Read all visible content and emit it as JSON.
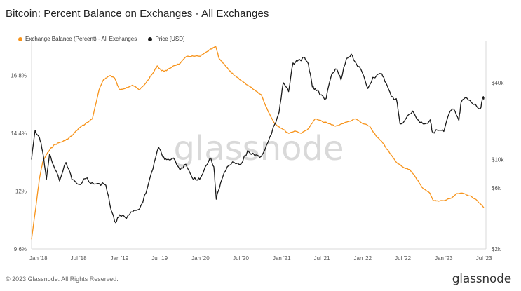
{
  "title": "Bitcoin: Percent Balance on Exchanges - All Exchanges",
  "legend": {
    "exchange_label": "Exchange Balance (Percent) - All Exchanges",
    "price_label": "Price [USD]"
  },
  "footer": {
    "copyright": "© 2023 Glassnode. All Rights Reserved.",
    "brand": "glassnode"
  },
  "watermark": "glassnode",
  "colors": {
    "exchange": "#f7931a",
    "price": "#1a1a1a",
    "grid": "#efefef"
  },
  "chart_data": {
    "type": "line",
    "title": "Bitcoin: Percent Balance on Exchanges - All Exchanges",
    "xlim": [
      "2017-12-01",
      "2023-07-10"
    ],
    "x_ticks": [
      "Jan '18",
      "Jul '18",
      "Jan '19",
      "Jul '19",
      "Jan '20",
      "Jul '20",
      "Jan '21",
      "Jul '21",
      "Jan '22",
      "Jul '22",
      "Jan '23",
      "Jul '23"
    ],
    "y_left": {
      "ticks": [
        "9.6%",
        "12%",
        "14.4%",
        "16.8%"
      ],
      "ylim": [
        9.6,
        18.1
      ]
    },
    "y_right": {
      "scale": "log",
      "ticks": [
        "$2k",
        "$6k",
        "$10k",
        "$40k"
      ],
      "tick_values": [
        2000,
        6000,
        10000,
        40000
      ],
      "ylim": [
        2000,
        80000
      ]
    },
    "grid": false,
    "legend_position": "top-left",
    "series": [
      {
        "name": "Exchange Balance (Percent) - All Exchanges",
        "axis": "left",
        "x": [
          "2017-12-01",
          "2017-12-20",
          "2018-01-05",
          "2018-01-20",
          "2018-02-05",
          "2018-02-20",
          "2018-03-10",
          "2018-04-01",
          "2018-05-01",
          "2018-06-01",
          "2018-07-01",
          "2018-08-01",
          "2018-09-01",
          "2018-10-01",
          "2018-10-20",
          "2018-11-01",
          "2018-11-20",
          "2018-12-10",
          "2019-01-01",
          "2019-02-01",
          "2019-03-01",
          "2019-04-01",
          "2019-05-01",
          "2019-06-01",
          "2019-06-20",
          "2019-07-10",
          "2019-08-01",
          "2019-09-01",
          "2019-10-01",
          "2019-11-01",
          "2019-12-01",
          "2020-01-01",
          "2020-02-01",
          "2020-02-20",
          "2020-03-10",
          "2020-03-25",
          "2020-04-15",
          "2020-05-10",
          "2020-06-01",
          "2020-07-01",
          "2020-08-01",
          "2020-09-01",
          "2020-10-01",
          "2020-11-01",
          "2020-12-01",
          "2021-01-01",
          "2021-02-01",
          "2021-03-01",
          "2021-04-01",
          "2021-05-01",
          "2021-06-01",
          "2021-07-01",
          "2021-08-01",
          "2021-09-01",
          "2021-10-01",
          "2021-11-01",
          "2021-12-01",
          "2022-01-01",
          "2022-02-01",
          "2022-03-01",
          "2022-04-01",
          "2022-05-01",
          "2022-06-01",
          "2022-07-01",
          "2022-08-01",
          "2022-09-01",
          "2022-10-01",
          "2022-11-01",
          "2022-11-15",
          "2022-12-01",
          "2023-01-01",
          "2023-02-01",
          "2023-03-01",
          "2023-04-01",
          "2023-05-01",
          "2023-06-01",
          "2023-07-01"
        ],
        "y": [
          10.0,
          11.3,
          12.5,
          13.2,
          13.5,
          13.7,
          13.9,
          14.0,
          14.1,
          14.3,
          14.6,
          14.8,
          15.0,
          16.2,
          16.6,
          16.7,
          16.8,
          16.7,
          16.2,
          16.3,
          16.4,
          16.2,
          16.5,
          16.9,
          17.2,
          17.0,
          17.0,
          17.2,
          17.3,
          17.6,
          17.6,
          17.6,
          17.8,
          17.9,
          18.0,
          17.5,
          17.3,
          17.0,
          16.8,
          16.6,
          16.4,
          16.2,
          16.0,
          15.3,
          14.8,
          14.6,
          14.4,
          14.5,
          14.4,
          14.6,
          15.0,
          14.9,
          14.8,
          14.7,
          14.8,
          14.9,
          15.0,
          14.8,
          14.7,
          14.3,
          14.0,
          13.6,
          13.2,
          13.0,
          12.9,
          12.5,
          12.1,
          11.9,
          11.6,
          11.6,
          11.6,
          11.7,
          11.9,
          11.9,
          11.8,
          11.6,
          11.3
        ]
      },
      {
        "name": "Price [USD]",
        "axis": "right",
        "x": [
          "2017-12-01",
          "2017-12-17",
          "2018-01-05",
          "2018-01-20",
          "2018-02-06",
          "2018-02-20",
          "2018-03-10",
          "2018-04-06",
          "2018-05-05",
          "2018-06-01",
          "2018-07-01",
          "2018-08-01",
          "2018-09-01",
          "2018-10-01",
          "2018-11-01",
          "2018-11-25",
          "2018-12-15",
          "2019-01-01",
          "2019-02-01",
          "2019-03-01",
          "2019-04-01",
          "2019-05-01",
          "2019-06-01",
          "2019-06-26",
          "2019-07-15",
          "2019-08-01",
          "2019-09-01",
          "2019-10-01",
          "2019-10-27",
          "2019-11-25",
          "2019-12-17",
          "2020-01-01",
          "2020-02-13",
          "2020-03-01",
          "2020-03-12",
          "2020-04-01",
          "2020-05-01",
          "2020-06-01",
          "2020-07-01",
          "2020-08-01",
          "2020-09-01",
          "2020-10-01",
          "2020-11-01",
          "2020-12-01",
          "2020-12-20",
          "2021-01-08",
          "2021-02-01",
          "2021-02-21",
          "2021-03-13",
          "2021-04-14",
          "2021-05-01",
          "2021-05-19",
          "2021-06-01",
          "2021-06-22",
          "2021-07-20",
          "2021-08-15",
          "2021-09-05",
          "2021-09-25",
          "2021-10-20",
          "2021-11-10",
          "2021-12-01",
          "2022-01-01",
          "2022-01-24",
          "2022-02-15",
          "2022-03-28",
          "2022-04-15",
          "2022-05-10",
          "2022-06-01",
          "2022-06-18",
          "2022-07-15",
          "2022-08-14",
          "2022-09-15",
          "2022-10-15",
          "2022-11-01",
          "2022-11-10",
          "2022-12-15",
          "2023-01-01",
          "2023-01-25",
          "2023-02-15",
          "2023-03-10",
          "2023-03-20",
          "2023-04-14",
          "2023-05-15",
          "2023-06-15",
          "2023-06-25",
          "2023-07-01"
        ],
        "y": [
          10000,
          17000,
          15000,
          11500,
          7000,
          11000,
          9000,
          6800,
          9500,
          7000,
          6400,
          7100,
          6600,
          6500,
          6300,
          4000,
          3200,
          3700,
          3450,
          3900,
          4100,
          5500,
          8500,
          12500,
          10500,
          10000,
          10300,
          8300,
          9200,
          7200,
          6900,
          7200,
          10300,
          8800,
          4900,
          6600,
          8800,
          9500,
          9200,
          11800,
          10800,
          10600,
          13800,
          19000,
          23500,
          40000,
          34000,
          57000,
          59000,
          63000,
          56000,
          37000,
          36000,
          32000,
          30000,
          47000,
          51000,
          42000,
          62000,
          67000,
          57000,
          47000,
          36000,
          44000,
          47000,
          40000,
          31000,
          30000,
          19000,
          21000,
          24000,
          19500,
          19300,
          20500,
          16500,
          17000,
          16600,
          23000,
          24800,
          20200,
          28000,
          30400,
          27000,
          25100,
          30400,
          30600
        ]
      }
    ]
  }
}
